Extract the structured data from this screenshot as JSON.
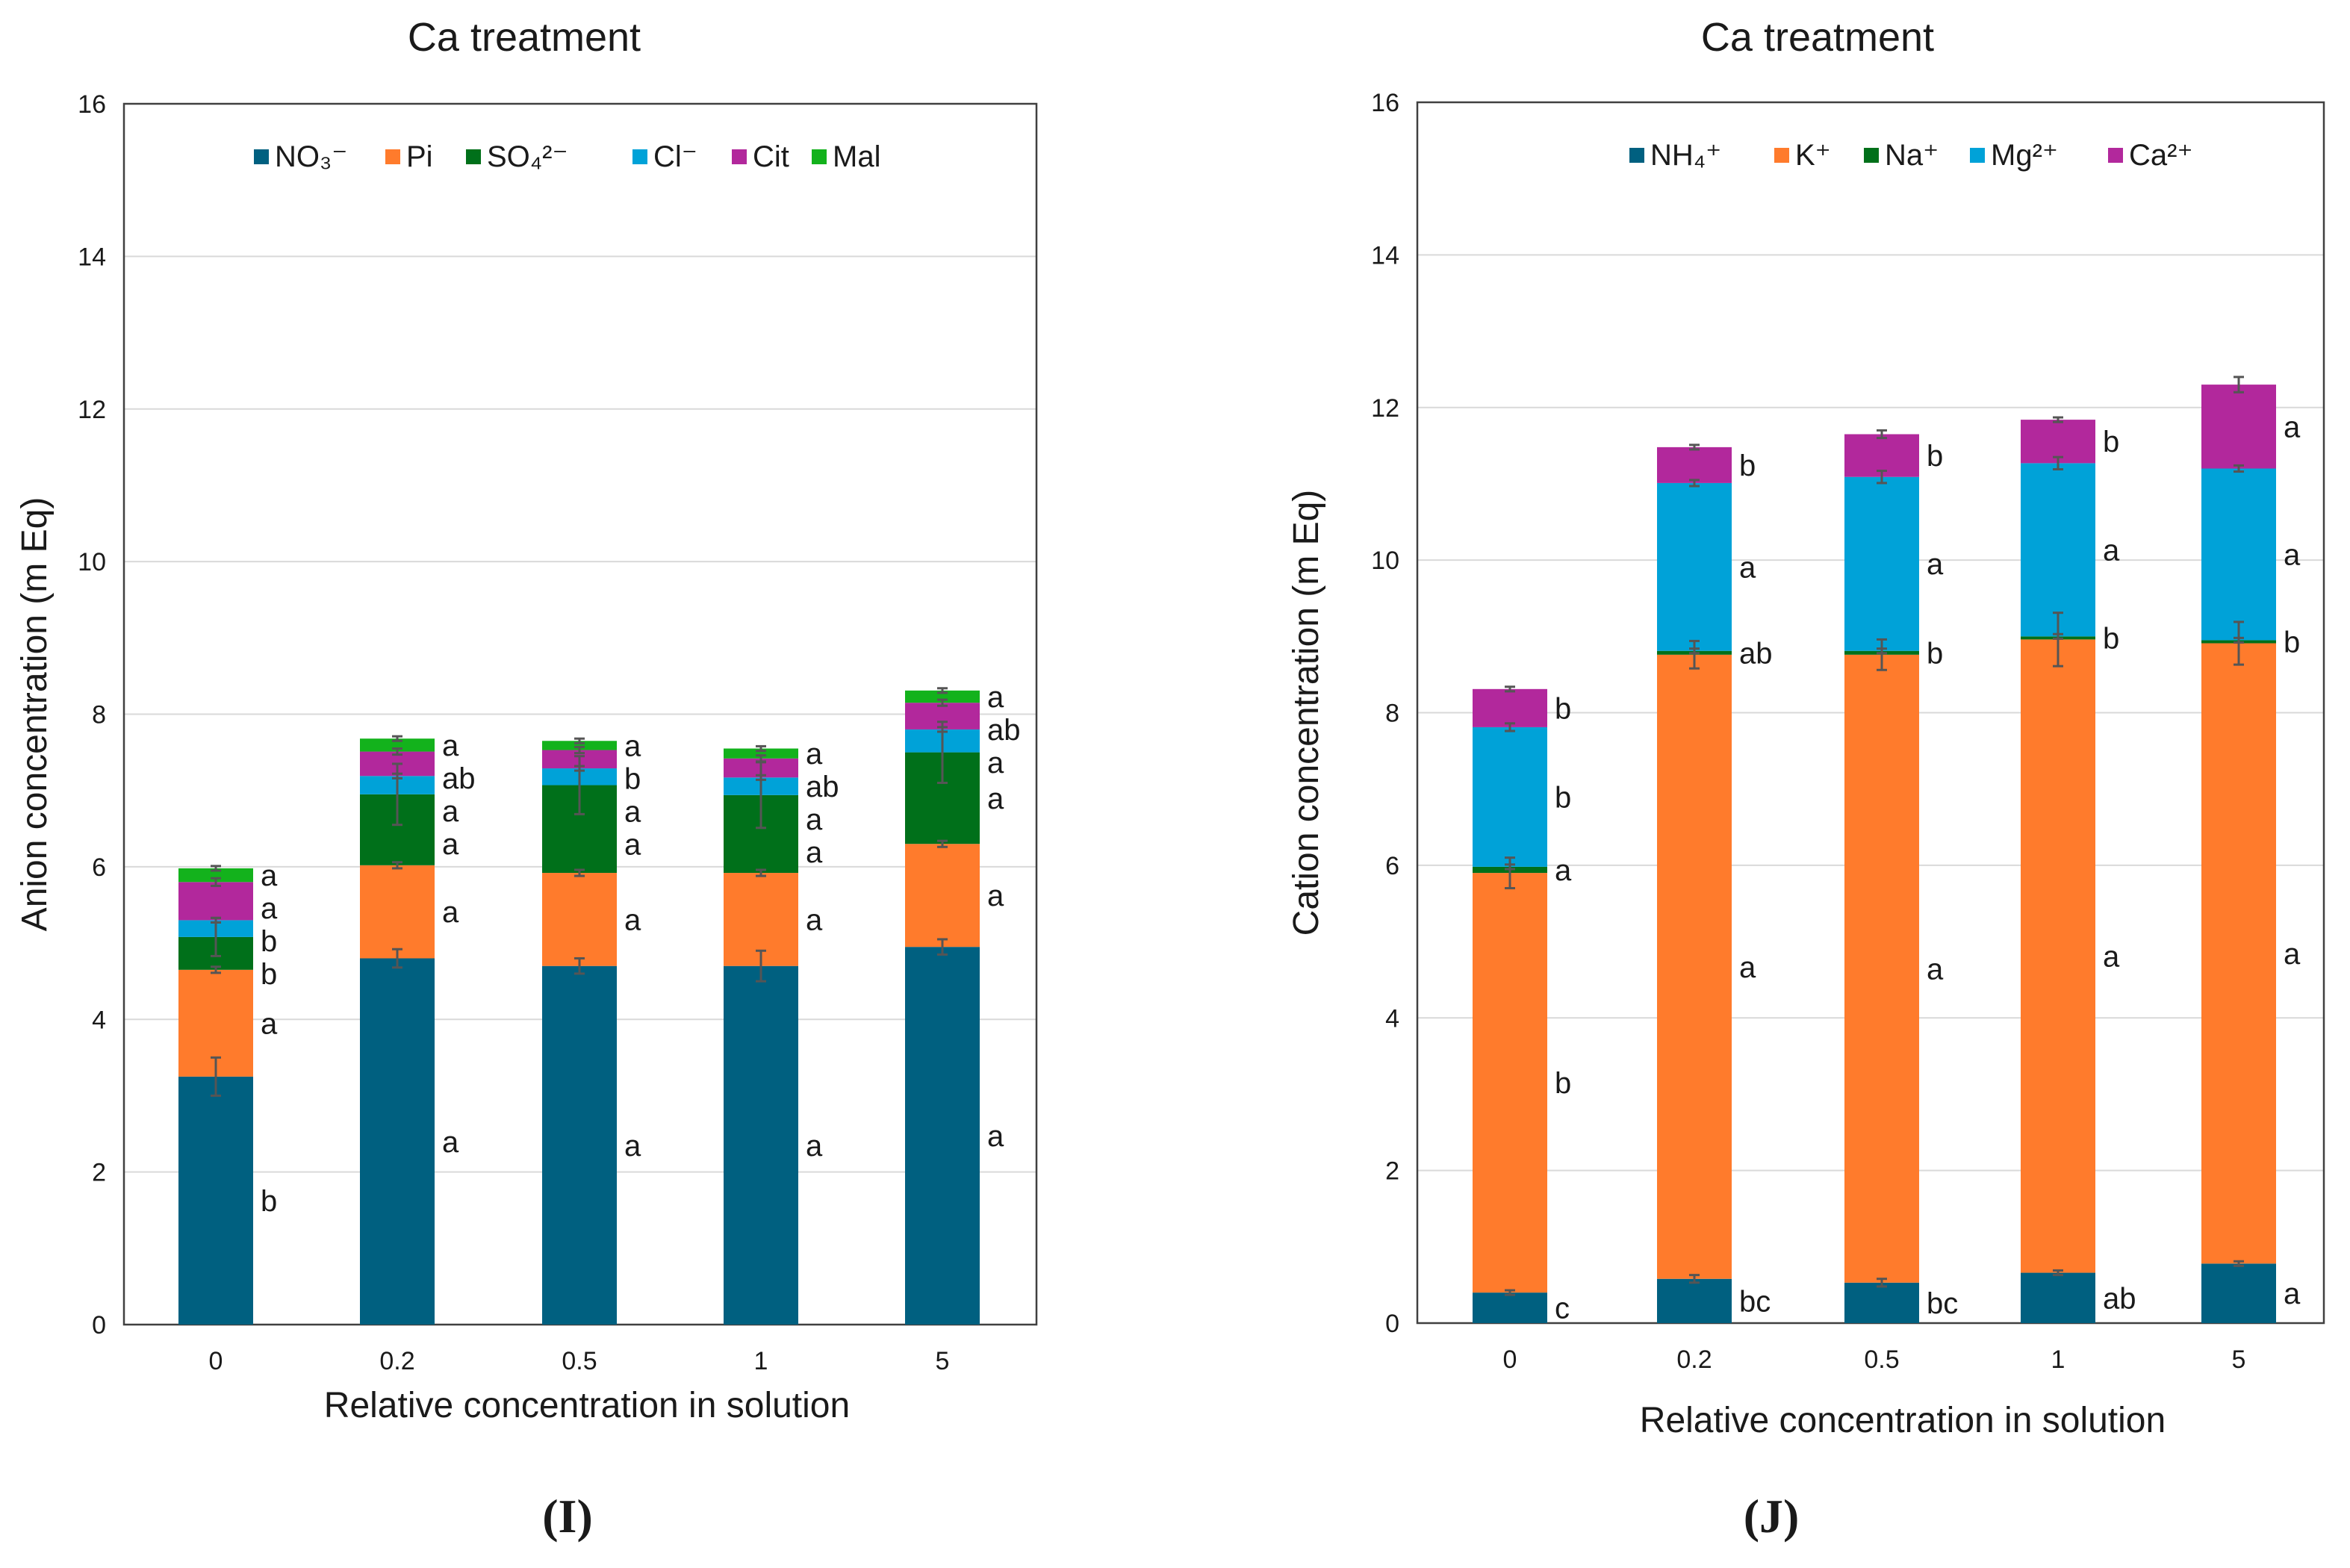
{
  "colors": {
    "NO3": "#006080",
    "Pi": "#FF7B2C",
    "SO4": "#00701A",
    "Cl": "#00A2D8",
    "Cit": "#B2289C",
    "Mal": "#13B21C",
    "NH4": "#006080",
    "K": "#FF7B2C",
    "Na": "#00701A",
    "Mg": "#00A2D8",
    "Ca": "#B2289C"
  },
  "chart_data": [
    {
      "type": "bar",
      "stacked": true,
      "title": "Ca treatment",
      "xlabel": "Relative concentration in solution",
      "ylabel": "Anion concentration (m Eq)",
      "ylim": [
        0,
        16
      ],
      "yticks": [
        "0",
        "2",
        "4",
        "6",
        "8",
        "10",
        "12",
        "14",
        "16"
      ],
      "grid": true,
      "legend_position": "top",
      "panel_label": "(I)",
      "categories": [
        "0",
        "0.2",
        "0.5",
        "1",
        "5"
      ],
      "series": [
        {
          "name": "NO₃⁻",
          "color_key": "NO3",
          "values": [
            3.25,
            4.8,
            4.7,
            4.7,
            4.95
          ],
          "errors": [
            0.25,
            0.12,
            0.1,
            0.2,
            0.1
          ],
          "letters": [
            "b",
            "a",
            "a",
            "a",
            "a"
          ]
        },
        {
          "name": "Pi",
          "color_key": "Pi",
          "values": [
            1.4,
            1.22,
            1.22,
            1.22,
            1.35
          ],
          "errors": [
            0.04,
            0.04,
            0.04,
            0.04,
            0.04
          ],
          "letters": [
            "a",
            "a",
            "a",
            "a",
            "a"
          ]
        },
        {
          "name": "SO₄²⁻",
          "color_key": "SO4",
          "values": [
            0.43,
            0.93,
            1.15,
            1.02,
            1.2
          ],
          "errors": [
            0.25,
            0.4,
            0.38,
            0.43,
            0.4
          ],
          "letters": [
            "b",
            "a",
            "a",
            "a",
            "a"
          ]
        },
        {
          "name": "Cl⁻",
          "color_key": "Cl",
          "values": [
            0.22,
            0.24,
            0.22,
            0.23,
            0.3
          ],
          "errors": [
            0.03,
            0.03,
            0.03,
            0.03,
            0.03
          ],
          "letters": [
            "b",
            "a",
            "a",
            "a",
            "a"
          ]
        },
        {
          "name": "Cit",
          "color_key": "Cit",
          "values": [
            0.5,
            0.32,
            0.24,
            0.25,
            0.35
          ],
          "errors": [
            0.05,
            0.04,
            0.04,
            0.04,
            0.04
          ],
          "letters": [
            "a",
            "ab",
            "b",
            "ab",
            "ab"
          ]
        },
        {
          "name": "Mal",
          "color_key": "Mal",
          "values": [
            0.18,
            0.17,
            0.12,
            0.13,
            0.16
          ],
          "errors": [
            0.03,
            0.03,
            0.03,
            0.03,
            0.03
          ],
          "letters": [
            "a",
            "a",
            "a",
            "a",
            "a"
          ]
        }
      ]
    },
    {
      "type": "bar",
      "stacked": true,
      "title": "Ca treatment",
      "xlabel": "Relative concentration in solution",
      "ylabel": "Cation concentration (m Eq)",
      "ylim": [
        0,
        16
      ],
      "yticks": [
        "0",
        "2",
        "4",
        "6",
        "8",
        "10",
        "12",
        "14",
        "16"
      ],
      "grid": true,
      "legend_position": "top",
      "panel_label": "(J)",
      "categories": [
        "0",
        "0.2",
        "0.5",
        "1",
        "5"
      ],
      "series": [
        {
          "name": "NH₄⁺",
          "color_key": "NH4",
          "values": [
            0.4,
            0.58,
            0.53,
            0.66,
            0.78
          ],
          "errors": [
            0.03,
            0.05,
            0.05,
            0.03,
            0.03
          ],
          "letters": [
            "c",
            "bc",
            "bc",
            "ab",
            "a"
          ]
        },
        {
          "name": "K⁺",
          "color_key": "K",
          "values": [
            5.5,
            8.18,
            8.23,
            8.3,
            8.13
          ],
          "errors": [
            0.2,
            0.18,
            0.2,
            0.35,
            0.28
          ],
          "letters": [
            "b",
            "a",
            "a",
            "a",
            "a"
          ]
        },
        {
          "name": "Na⁺",
          "color_key": "Na",
          "values": [
            0.08,
            0.05,
            0.05,
            0.04,
            0.04
          ],
          "errors": [
            0.03,
            0.03,
            0.03,
            0.03,
            0.03
          ],
          "letters": [
            "a",
            "ab",
            "b",
            "b",
            "b"
          ]
        },
        {
          "name": "Mg²⁺",
          "color_key": "Mg",
          "values": [
            1.83,
            2.2,
            2.28,
            2.27,
            2.25
          ],
          "errors": [
            0.05,
            0.04,
            0.08,
            0.08,
            0.04
          ],
          "letters": [
            "b",
            "a",
            "a",
            "a",
            "a"
          ]
        },
        {
          "name": "Ca²⁺",
          "color_key": "Ca",
          "values": [
            0.5,
            0.47,
            0.56,
            0.57,
            1.1
          ],
          "errors": [
            0.03,
            0.03,
            0.05,
            0.03,
            0.1
          ],
          "letters": [
            "b",
            "b",
            "b",
            "b",
            "a"
          ]
        }
      ]
    }
  ]
}
